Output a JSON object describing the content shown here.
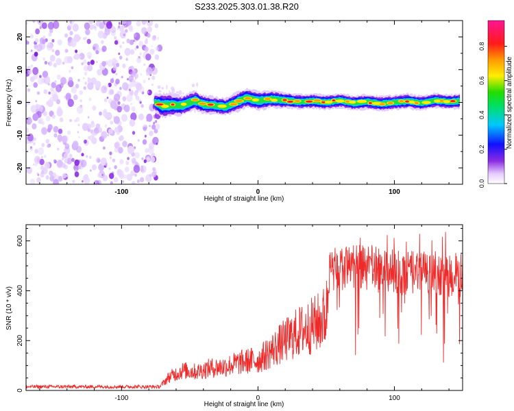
{
  "figure": {
    "title": "S233.2025.303.01.38.R20"
  },
  "colors": {
    "noise_purple": "#8a2be2",
    "snr_line": "#ee2a2a"
  },
  "chart_data": [
    {
      "type": "heatmap",
      "title": "S233.2025.303.01.38.R20",
      "xlabel": "Height of straight line (km)",
      "ylabel": "Frequency (Hz)",
      "xlim": [
        -170,
        150
      ],
      "ylim": [
        -25,
        25
      ],
      "x_ticks": [
        -100,
        0,
        100
      ],
      "y_ticks": [
        -20,
        -10,
        0,
        10,
        20
      ],
      "x_tick_labels": [
        "-100",
        "0",
        "100"
      ],
      "y_tick_labels": [
        "-20",
        "-10",
        "0",
        "10",
        "20"
      ],
      "colorbar": {
        "label": "Normalized spectral amplitude",
        "range": [
          0,
          0.95
        ],
        "ticks": [
          0,
          0.2,
          0.4,
          0.6,
          0.8
        ],
        "tick_labels": [
          "0.0",
          "0.2",
          "0.4",
          "0.6",
          "0.8"
        ],
        "colormap": "rainbow (white-purple-blue-cyan-green-yellow-orange-red-magenta)"
      },
      "noise_region": {
        "x_range": [
          -170,
          -74
        ],
        "amplitude": 0.1
      },
      "signal_band": [
        {
          "x": -76,
          "f_center": 0.0,
          "halfwidth": 1.3
        },
        {
          "x": -70,
          "f_center": -1.0,
          "halfwidth": 2.0
        },
        {
          "x": -64,
          "f_center": -0.8,
          "halfwidth": 1.8
        },
        {
          "x": -56,
          "f_center": -1.0,
          "halfwidth": 1.6
        },
        {
          "x": -46,
          "f_center": 0.6,
          "halfwidth": 1.6
        },
        {
          "x": -40,
          "f_center": -0.6,
          "halfwidth": 1.5
        },
        {
          "x": -30,
          "f_center": -1.0,
          "halfwidth": 1.4
        },
        {
          "x": -24,
          "f_center": -1.4,
          "halfwidth": 1.4
        },
        {
          "x": -14,
          "f_center": 0.4,
          "halfwidth": 1.6
        },
        {
          "x": -8,
          "f_center": 1.4,
          "halfwidth": 1.6
        },
        {
          "x": 0,
          "f_center": 0.5,
          "halfwidth": 1.5
        },
        {
          "x": 10,
          "f_center": 1.0,
          "halfwidth": 1.4
        },
        {
          "x": 20,
          "f_center": 0.6,
          "halfwidth": 1.3
        },
        {
          "x": 30,
          "f_center": 0.2,
          "halfwidth": 1.2
        },
        {
          "x": 40,
          "f_center": 0.4,
          "halfwidth": 1.2
        },
        {
          "x": 50,
          "f_center": 0.0,
          "halfwidth": 1.2
        },
        {
          "x": 60,
          "f_center": 0.6,
          "halfwidth": 1.2
        },
        {
          "x": 70,
          "f_center": -0.2,
          "halfwidth": 1.2
        },
        {
          "x": 80,
          "f_center": 0.2,
          "halfwidth": 1.2
        },
        {
          "x": 90,
          "f_center": -0.4,
          "halfwidth": 1.2
        },
        {
          "x": 100,
          "f_center": 0.0,
          "halfwidth": 1.2
        },
        {
          "x": 110,
          "f_center": 0.4,
          "halfwidth": 1.2
        },
        {
          "x": 120,
          "f_center": -0.2,
          "halfwidth": 1.2
        },
        {
          "x": 130,
          "f_center": 0.6,
          "halfwidth": 1.2
        },
        {
          "x": 140,
          "f_center": 0.2,
          "halfwidth": 1.2
        },
        {
          "x": 148,
          "f_center": 0.4,
          "halfwidth": 1.2
        }
      ]
    },
    {
      "type": "line",
      "xlabel": "Height of straight line (km)",
      "ylabel": "SNR (10 * v/v)",
      "xlim": [
        -170,
        150
      ],
      "ylim": [
        0,
        665
      ],
      "x_ticks": [
        -100,
        0,
        100
      ],
      "y_ticks": [
        0,
        200,
        400,
        600
      ],
      "x_tick_labels": [
        "-100",
        "0",
        "100"
      ],
      "y_tick_labels": [
        "0",
        "200",
        "400",
        "600"
      ],
      "series": [
        {
          "x": [
            -170,
            -150,
            -120,
            -100,
            -80,
            -72,
            -65,
            -55,
            -45,
            -35,
            -25,
            -15,
            -5,
            0,
            10,
            20,
            30,
            40,
            45,
            50,
            52,
            55,
            70,
            90,
            110,
            130,
            150
          ],
          "values": [
            15,
            15,
            15,
            15,
            15,
            15,
            55,
            80,
            75,
            90,
            95,
            110,
            120,
            120,
            160,
            200,
            235,
            260,
            275,
            300,
            470,
            480,
            500,
            480,
            470,
            470,
            460
          ]
        }
      ]
    }
  ]
}
